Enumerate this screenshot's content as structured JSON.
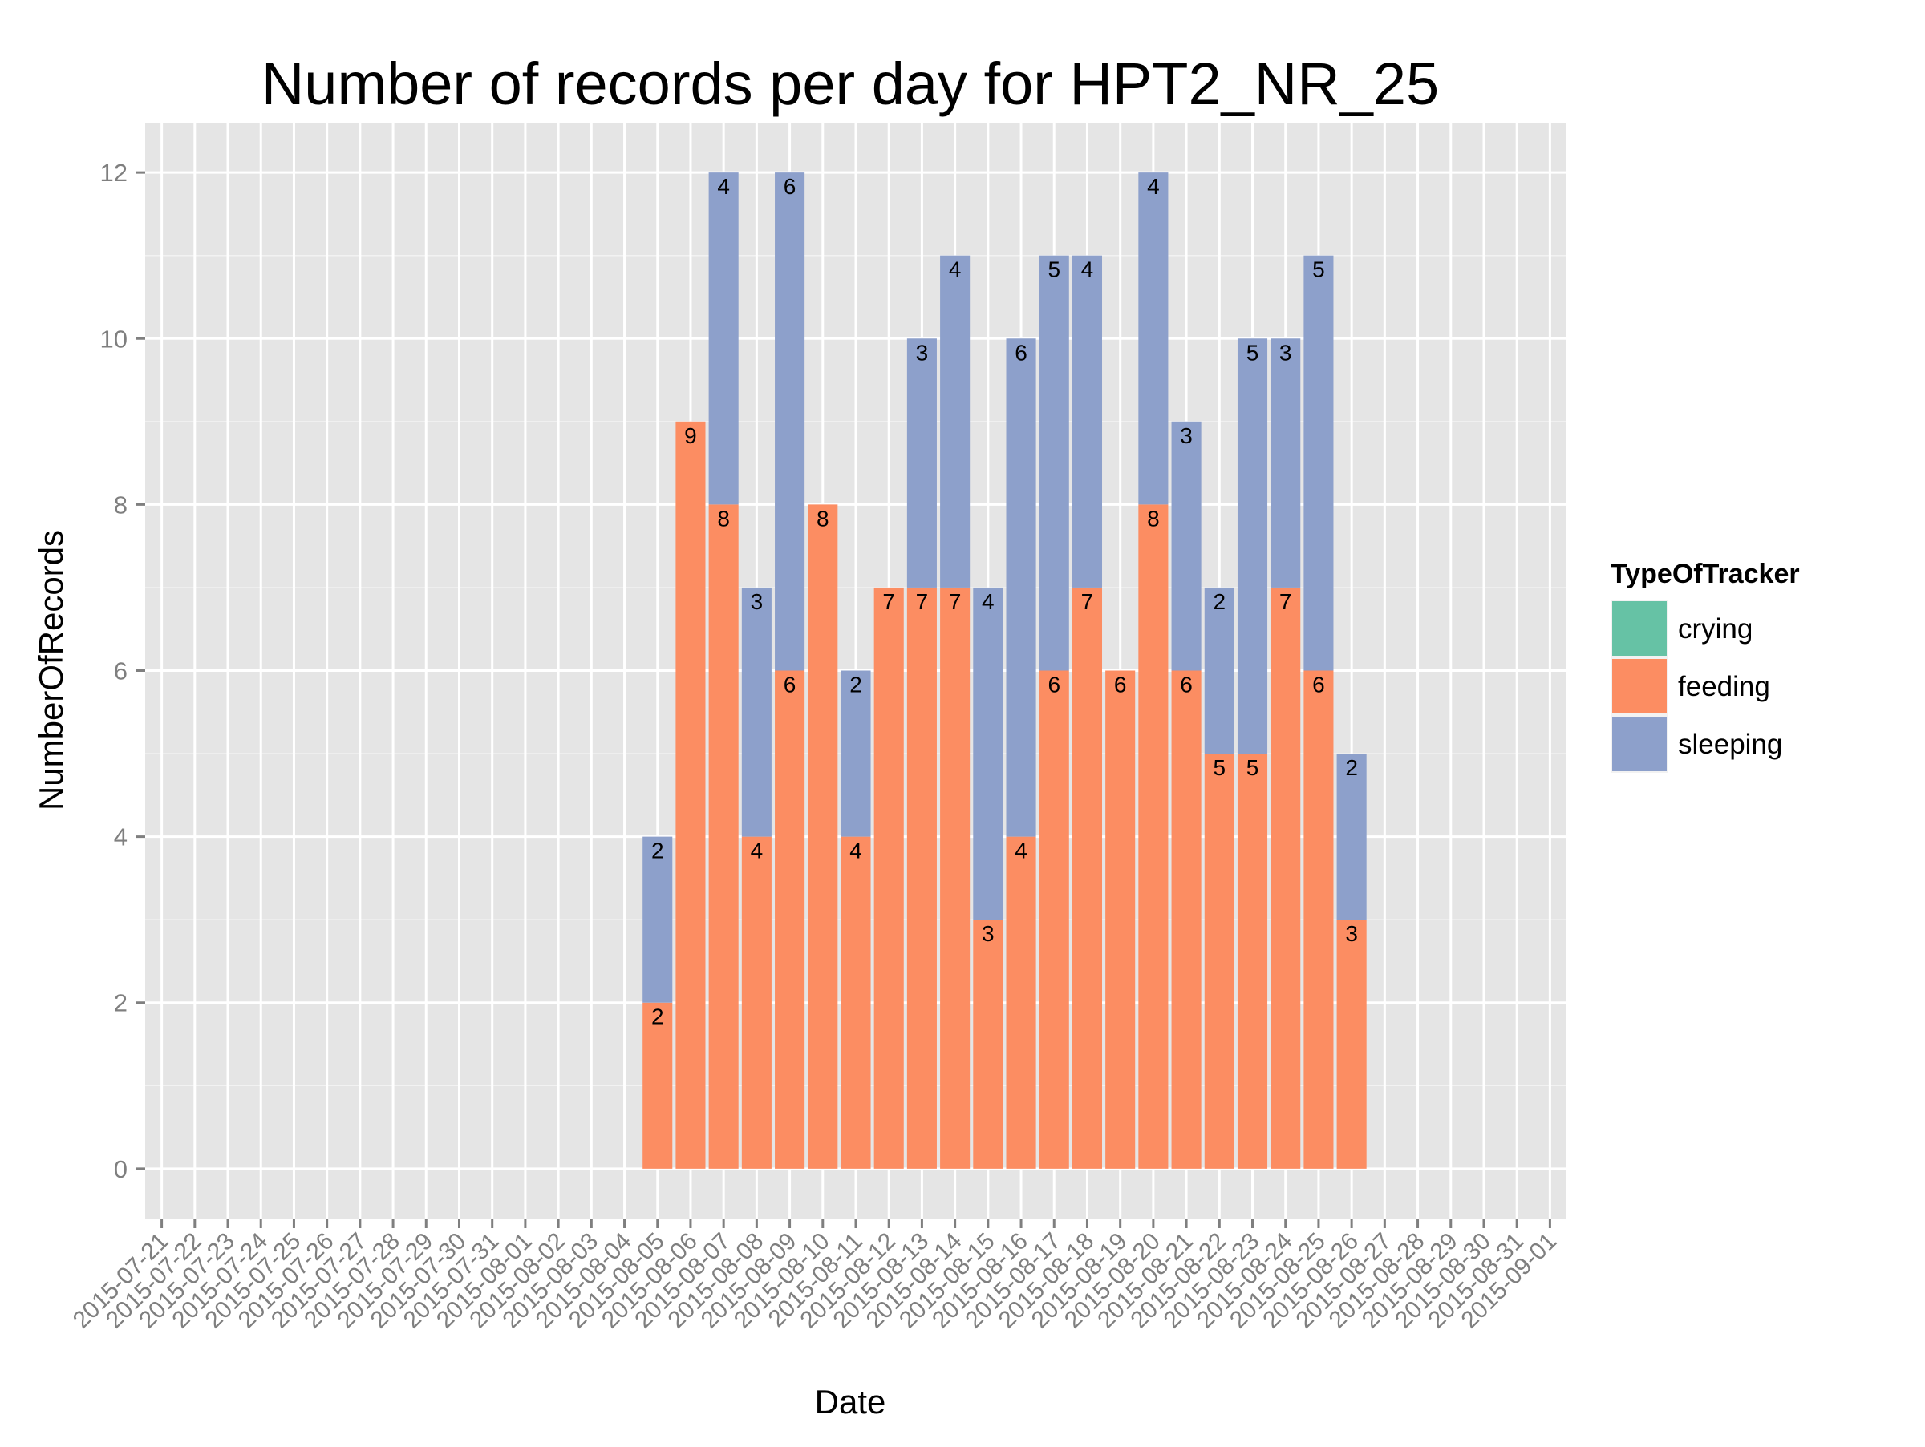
{
  "chart_data": {
    "type": "bar",
    "stacked": true,
    "title": "Number of records per day for HPT2_NR_25",
    "xlabel": "Date",
    "ylabel": "NumberOfRecords",
    "ylim": [
      -0.6,
      12.6
    ],
    "y_ticks": [
      0,
      2,
      4,
      6,
      8,
      10,
      12
    ],
    "grid": true,
    "legend": {
      "title": "TypeOfTracker",
      "position": "right"
    },
    "categories": [
      "2015-07-21",
      "2015-07-22",
      "2015-07-23",
      "2015-07-24",
      "2015-07-25",
      "2015-07-26",
      "2015-07-27",
      "2015-07-28",
      "2015-07-29",
      "2015-07-30",
      "2015-07-31",
      "2015-08-01",
      "2015-08-02",
      "2015-08-03",
      "2015-08-04",
      "2015-08-05",
      "2015-08-06",
      "2015-08-07",
      "2015-08-08",
      "2015-08-09",
      "2015-08-10",
      "2015-08-11",
      "2015-08-12",
      "2015-08-13",
      "2015-08-14",
      "2015-08-15",
      "2015-08-16",
      "2015-08-17",
      "2015-08-18",
      "2015-08-19",
      "2015-08-20",
      "2015-08-21",
      "2015-08-22",
      "2015-08-23",
      "2015-08-24",
      "2015-08-25",
      "2015-08-26",
      "2015-08-27",
      "2015-08-28",
      "2015-08-29",
      "2015-08-30",
      "2015-08-31",
      "2015-09-01"
    ],
    "series": [
      {
        "name": "crying",
        "color": "#66C2A5",
        "values": [
          0,
          0,
          0,
          0,
          0,
          0,
          0,
          0,
          0,
          0,
          0,
          0,
          0,
          0,
          0,
          0,
          0,
          0,
          0,
          0,
          0,
          0,
          0,
          0,
          0,
          0,
          0,
          0,
          0,
          0,
          0,
          0,
          0,
          0,
          0,
          0,
          0,
          0,
          0,
          0,
          0,
          0,
          0
        ]
      },
      {
        "name": "feeding",
        "color": "#FC8D62",
        "values": [
          0,
          0,
          0,
          0,
          0,
          0,
          0,
          0,
          0,
          0,
          0,
          0,
          0,
          0,
          0,
          2,
          9,
          8,
          4,
          6,
          8,
          4,
          7,
          7,
          7,
          3,
          4,
          6,
          7,
          6,
          8,
          6,
          5,
          5,
          7,
          6,
          3,
          0,
          0,
          0,
          0,
          0,
          0
        ]
      },
      {
        "name": "sleeping",
        "color": "#8DA0CB",
        "values": [
          0,
          0,
          0,
          0,
          0,
          0,
          0,
          0,
          0,
          0,
          0,
          0,
          0,
          0,
          0,
          2,
          0,
          4,
          3,
          6,
          0,
          2,
          0,
          3,
          4,
          4,
          6,
          5,
          4,
          0,
          4,
          3,
          2,
          5,
          3,
          5,
          2,
          0,
          0,
          0,
          0,
          0,
          0
        ]
      }
    ]
  }
}
